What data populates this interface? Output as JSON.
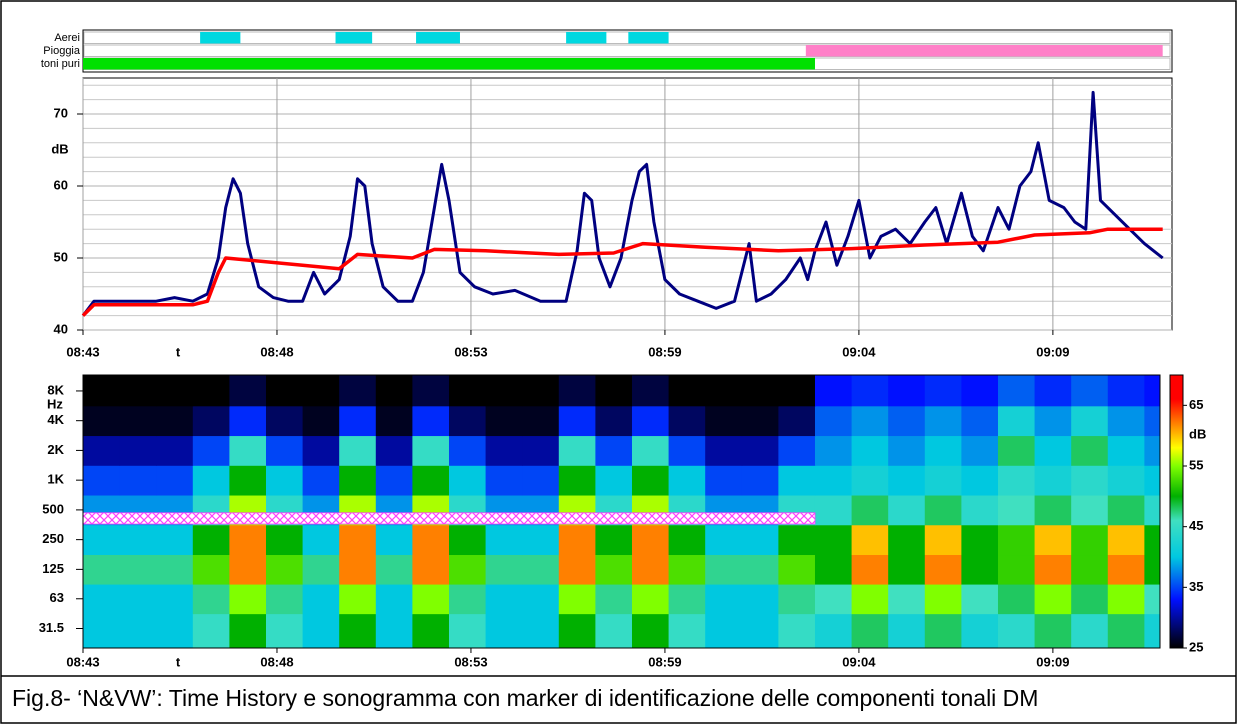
{
  "caption": "Fig.8- ‘N&VW’: Time History e sonogramma con marker di identificazione delle componenti tonali DM",
  "chart_data": [
    {
      "type": "timeline",
      "xlim": [
        523,
        552.7
      ],
      "rows": [
        {
          "name": "Aerei",
          "color": "#00d8e0",
          "intervals": [
            [
              526.2,
              527.3
            ],
            [
              529.9,
              530.9
            ],
            [
              532.1,
              533.3
            ],
            [
              536.2,
              537.3
            ],
            [
              537.9,
              539.0
            ]
          ]
        },
        {
          "name": "Pioggia",
          "color": "#ff80c8",
          "intervals": [
            [
              542.75,
              552.5
            ]
          ]
        },
        {
          "name": "toni puri",
          "color": "#00e000",
          "intervals": [
            [
              523,
              543.0
            ]
          ]
        }
      ]
    },
    {
      "type": "line",
      "xlabel": "t",
      "ylabel": "dB",
      "xlim": [
        523,
        552.7
      ],
      "ylim": [
        40,
        75
      ],
      "yticks": [
        40,
        50,
        60,
        70
      ],
      "yminor": [
        42,
        44,
        46,
        48,
        52,
        54,
        56,
        58,
        62,
        64,
        66,
        68,
        72,
        74
      ],
      "grid": true,
      "xticks": [
        {
          "value": 523,
          "label": "08:43"
        },
        {
          "value": 528.3,
          "label": "08:48"
        },
        {
          "value": 533.6,
          "label": "08:53"
        },
        {
          "value": 538.9,
          "label": "08:59"
        },
        {
          "value": 544.2,
          "label": "09:04"
        },
        {
          "value": 549.5,
          "label": "09:09"
        }
      ],
      "series": [
        {
          "color": "#000080",
          "x": [
            523.0,
            523.3,
            524,
            525,
            525.5,
            526,
            526.4,
            526.7,
            526.9,
            527.1,
            527.3,
            527.5,
            527.8,
            528.2,
            528.6,
            529,
            529.3,
            529.6,
            530,
            530.3,
            530.5,
            530.7,
            530.9,
            531.2,
            531.6,
            532,
            532.3,
            532.6,
            532.8,
            533.0,
            533.3,
            533.7,
            534.2,
            534.8,
            535.5,
            536.2,
            536.5,
            536.7,
            536.9,
            537.1,
            537.4,
            537.7,
            538.0,
            538.2,
            538.4,
            538.6,
            538.9,
            539.3,
            539.8,
            540.3,
            540.8,
            541.2,
            541.4,
            541.8,
            542.2,
            542.6,
            542.8,
            543.0,
            543.3,
            543.6,
            543.9,
            544.2,
            544.5,
            544.8,
            545.2,
            545.6,
            546.0,
            546.3,
            546.6,
            547.0,
            547.3,
            547.6,
            548.0,
            548.3,
            548.6,
            548.9,
            549.1,
            549.4,
            549.8,
            550.1,
            550.4,
            550.6,
            550.8,
            551.2,
            551.6,
            552.0,
            552.5
          ],
          "values": [
            42,
            44,
            44,
            44,
            44.5,
            44,
            45,
            50,
            57,
            61,
            59,
            52,
            46,
            44.5,
            44,
            44,
            48,
            45,
            47,
            53,
            61,
            60,
            52,
            46,
            44,
            44,
            48,
            57,
            63,
            58,
            48,
            46,
            45,
            45.5,
            44,
            44,
            51,
            59,
            58,
            50,
            46,
            50,
            58,
            62,
            63,
            55,
            47,
            45,
            44,
            43,
            44,
            52,
            44,
            45,
            47,
            50,
            47,
            51,
            55,
            49,
            53,
            58,
            50,
            53,
            54,
            52,
            55,
            57,
            52,
            59,
            53,
            51,
            57,
            54,
            60,
            62,
            66,
            58,
            57,
            55,
            54,
            73,
            58,
            56,
            54,
            52,
            50
          ]
        },
        {
          "color": "#ff0000",
          "x": [
            523,
            523.3,
            526,
            526.4,
            526.7,
            526.9,
            529,
            530,
            530.5,
            532,
            532.6,
            534,
            536,
            537.5,
            538.3,
            540,
            542,
            544,
            546,
            548,
            549,
            550.5,
            551,
            552.5
          ],
          "values": [
            42,
            43.5,
            43.5,
            44,
            48,
            50,
            49,
            48.5,
            50.5,
            50,
            51.2,
            51,
            50.5,
            50.7,
            52,
            51.5,
            51,
            51.3,
            51.8,
            52.2,
            53.2,
            53.5,
            54,
            54
          ]
        }
      ]
    },
    {
      "type": "heatmap",
      "xlabel": "t",
      "ylabel": "Hz",
      "xlim": [
        523,
        552.7
      ],
      "ylim": [
        20,
        11600
      ],
      "log_y": true,
      "xticks": [
        {
          "value": 523,
          "label": "08:43"
        },
        {
          "value": 528.3,
          "label": "08:48"
        },
        {
          "value": 533.6,
          "label": "08:53"
        },
        {
          "value": 538.9,
          "label": "08:59"
        },
        {
          "value": 544.2,
          "label": "09:04"
        },
        {
          "value": 549.5,
          "label": "09:09"
        }
      ],
      "yticks": [
        31.5,
        63,
        125,
        250,
        500,
        {
          "value": 1000,
          "label": "1K"
        },
        {
          "value": 2000,
          "label": "2K"
        },
        {
          "value": 4000,
          "label": "4K"
        },
        {
          "value": 8000,
          "label": "8K"
        }
      ],
      "x": [
        523.5,
        524.5,
        525.5,
        526.5,
        527.5,
        528.5,
        529.5,
        530.5,
        531.5,
        532.5,
        533.5,
        534.5,
        535.5,
        536.5,
        537.5,
        538.5,
        539.5,
        540.5,
        541.5,
        542.5,
        543.5,
        544.5,
        545.5,
        546.5,
        547.5,
        548.5,
        549.5,
        550.5,
        551.5,
        552.5
      ],
      "y": [
        31.5,
        63,
        125,
        250,
        500,
        1000,
        2000,
        4000,
        8000
      ],
      "z": [
        [
          40,
          40,
          40,
          45,
          50,
          45,
          40,
          50,
          40,
          50,
          45,
          40,
          40,
          50,
          45,
          50,
          45,
          40,
          40,
          45,
          42,
          48,
          42,
          48,
          42,
          44,
          48,
          44,
          48,
          42
        ],
        [
          40,
          40,
          40,
          47,
          55,
          47,
          40,
          55,
          40,
          55,
          47,
          40,
          40,
          55,
          47,
          55,
          47,
          40,
          40,
          47,
          46,
          55,
          46,
          55,
          46,
          48,
          55,
          48,
          55,
          46
        ],
        [
          47,
          47,
          47,
          53,
          62,
          53,
          47,
          62,
          47,
          62,
          53,
          47,
          47,
          62,
          53,
          62,
          53,
          47,
          47,
          53,
          50,
          62,
          50,
          62,
          50,
          52,
          62,
          52,
          62,
          50
        ],
        [
          40,
          40,
          40,
          50,
          62,
          50,
          40,
          62,
          40,
          62,
          50,
          40,
          40,
          62,
          50,
          62,
          50,
          40,
          40,
          50,
          50,
          60,
          50,
          60,
          50,
          52,
          60,
          52,
          60,
          50
        ],
        [
          38,
          38,
          38,
          44,
          56,
          44,
          38,
          56,
          38,
          56,
          44,
          38,
          38,
          56,
          44,
          56,
          44,
          38,
          38,
          44,
          44,
          48,
          44,
          48,
          44,
          46,
          48,
          46,
          48,
          44
        ],
        [
          35,
          35,
          35,
          40,
          50,
          40,
          35,
          50,
          35,
          50,
          40,
          35,
          35,
          50,
          40,
          50,
          40,
          35,
          35,
          40,
          40,
          42,
          40,
          42,
          40,
          44,
          42,
          44,
          42,
          40
        ],
        [
          30,
          30,
          30,
          35,
          45,
          35,
          30,
          45,
          30,
          45,
          35,
          30,
          30,
          45,
          35,
          45,
          35,
          30,
          30,
          35,
          38,
          40,
          38,
          40,
          38,
          48,
          40,
          48,
          40,
          38
        ],
        [
          26,
          26,
          26,
          28,
          34,
          28,
          26,
          34,
          26,
          34,
          28,
          26,
          26,
          34,
          28,
          34,
          28,
          26,
          26,
          28,
          36,
          38,
          36,
          38,
          36,
          42,
          38,
          42,
          38,
          36
        ],
        [
          25,
          25,
          25,
          25,
          27,
          25,
          25,
          27,
          25,
          27,
          25,
          25,
          25,
          27,
          25,
          27,
          25,
          25,
          25,
          25,
          33,
          34,
          33,
          34,
          33,
          36,
          34,
          36,
          34,
          33
        ]
      ],
      "colorscale": [
        [
          25,
          "#000000"
        ],
        [
          33,
          "#0010ff"
        ],
        [
          40,
          "#00c8e0"
        ],
        [
          46,
          "#40e0c0"
        ],
        [
          50,
          "#00b000"
        ],
        [
          55,
          "#80ff00"
        ],
        [
          58,
          "#ffff00"
        ],
        [
          62,
          "#ff8000"
        ],
        [
          66,
          "#ff0000"
        ],
        [
          70,
          "#ff0000"
        ]
      ],
      "colorbar": {
        "label": "dB",
        "lim": [
          25,
          70
        ],
        "ticks": [
          25,
          35,
          45,
          55,
          65
        ]
      },
      "marker_band": [
        360,
        467
      ],
      "marker_color": "#ff40ff"
    }
  ]
}
